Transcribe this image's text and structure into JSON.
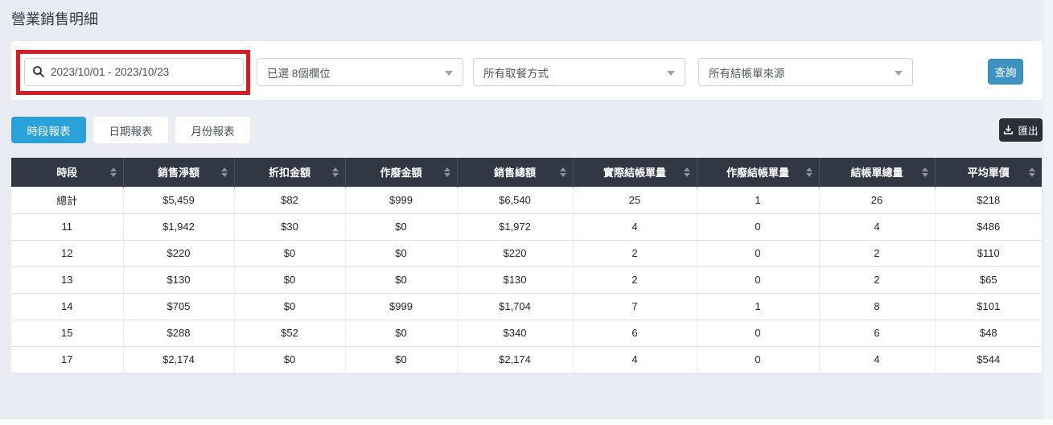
{
  "page": {
    "title": "營業銷售明細"
  },
  "filters": {
    "date_range": {
      "value": "2023/10/01 - 2023/10/23"
    },
    "columns_select": {
      "value": "已選 8個欄位"
    },
    "pickup_select": {
      "value": "所有取餐方式"
    },
    "source_select": {
      "value": "所有結帳單來源"
    },
    "query_button_label": "查詢"
  },
  "tabs": [
    {
      "label": "時段報表",
      "active": true
    },
    {
      "label": "日期報表",
      "active": false
    },
    {
      "label": "月份報表",
      "active": false
    }
  ],
  "export_button": {
    "label": "匯出"
  },
  "table": {
    "columns": [
      "時段",
      "銷售淨額",
      "折扣金額",
      "作廢金額",
      "銷售總額",
      "實際結帳單量",
      "作廢結帳單量",
      "結帳單總量",
      "平均單價"
    ],
    "rows": [
      [
        "總計",
        "$5,459",
        "$82",
        "$999",
        "$6,540",
        "25",
        "1",
        "26",
        "$218"
      ],
      [
        "11",
        "$1,942",
        "$30",
        "$0",
        "$1,972",
        "4",
        "0",
        "4",
        "$486"
      ],
      [
        "12",
        "$220",
        "$0",
        "$0",
        "$220",
        "2",
        "0",
        "2",
        "$110"
      ],
      [
        "13",
        "$130",
        "$0",
        "$0",
        "$130",
        "2",
        "0",
        "2",
        "$65"
      ],
      [
        "14",
        "$705",
        "$0",
        "$999",
        "$1,704",
        "7",
        "1",
        "8",
        "$101"
      ],
      [
        "15",
        "$288",
        "$52",
        "$0",
        "$340",
        "6",
        "0",
        "6",
        "$48"
      ],
      [
        "17",
        "$2,174",
        "$0",
        "$0",
        "$2,174",
        "4",
        "0",
        "4",
        "$544"
      ]
    ]
  },
  "icons": {
    "search": "magnifier",
    "dropdown_caret": "chevron-down",
    "export": "download-tray",
    "sort": "up-down-triangles"
  },
  "colors": {
    "page_background": "#e9edf3",
    "annotation_red": "#d21e26",
    "query_blue": "#3e93c0",
    "active_tab_blue": "#2aa1d8",
    "export_dark": "#2b3036",
    "table_header_dark": "#313843"
  }
}
